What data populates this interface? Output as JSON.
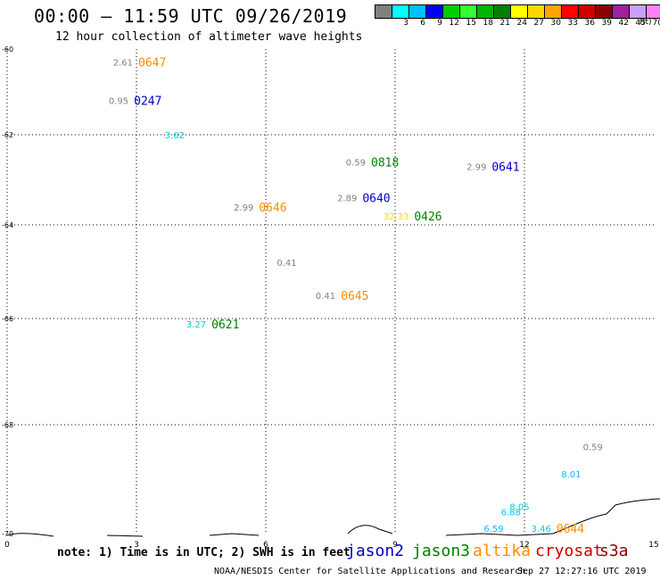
{
  "header": {
    "title": "00:00 – 11:59 UTC 09/26/2019",
    "subtitle": "12 hour collection of altimeter wave heights"
  },
  "legend": {
    "unit": "(ft)",
    "entries": [
      {
        "label": "",
        "color": "#808080"
      },
      {
        "label": "3",
        "color": "#00ffff"
      },
      {
        "label": "6",
        "color": "#00bfff"
      },
      {
        "label": "9",
        "color": "#0000ff"
      },
      {
        "label": "12",
        "color": "#00cd00"
      },
      {
        "label": "15",
        "color": "#32ff32"
      },
      {
        "label": "18",
        "color": "#00b400"
      },
      {
        "label": "21",
        "color": "#008000"
      },
      {
        "label": "24",
        "color": "#ffff00"
      },
      {
        "label": "27",
        "color": "#ffd700"
      },
      {
        "label": "30",
        "color": "#ffa500"
      },
      {
        "label": "33",
        "color": "#ff0000"
      },
      {
        "label": "36",
        "color": "#d00000"
      },
      {
        "label": "39",
        "color": "#8b0000"
      },
      {
        "label": "42",
        "color": "#a020a0"
      },
      {
        "label": "45",
        "color": "#c8a0ff"
      },
      {
        "label": "70",
        "color": "#ff80ff"
      },
      {
        "label": "",
        "color": "#000000"
      }
    ]
  },
  "axes": {
    "x_ticks": [
      {
        "label": "0",
        "lon": 0
      },
      {
        "label": "3",
        "lon": 3
      },
      {
        "label": "6",
        "lon": 6
      },
      {
        "label": "9",
        "lon": 9
      },
      {
        "label": "12",
        "lon": 12
      },
      {
        "label": "15",
        "lon": 15
      }
    ],
    "y_ticks": [
      {
        "label": "-60",
        "lat": -60
      },
      {
        "label": "-62",
        "lat": -62
      },
      {
        "label": "-64",
        "lat": -64
      },
      {
        "label": "-66",
        "lat": -66
      },
      {
        "label": "-68",
        "lat": -68
      },
      {
        "label": "-70",
        "lat": -70
      }
    ]
  },
  "observations": [
    {
      "swh": "2.61",
      "swh_color": "#808080",
      "time": "0647",
      "time_color": "#ff8c00",
      "lon": 3.0,
      "lat": -60.3
    },
    {
      "swh": "0.95",
      "swh_color": "#808080",
      "time": "0247",
      "time_color": "#0000cd",
      "lon": 2.9,
      "lat": -61.2
    },
    {
      "swh": "3.02",
      "swh_color": "#00ced1",
      "time": "",
      "time_color": "#00ced1",
      "lon": 4.2,
      "lat": -62.0
    },
    {
      "swh": "0.59",
      "swh_color": "#808080",
      "time": "0818",
      "time_color": "#008000",
      "lon": 8.4,
      "lat": -62.6
    },
    {
      "swh": "2.99",
      "swh_color": "#808080",
      "time": "0641",
      "time_color": "#0000cd",
      "lon": 11.2,
      "lat": -62.7
    },
    {
      "swh": "2.89",
      "swh_color": "#808080",
      "time": "0640",
      "time_color": "#0000cd",
      "lon": 8.2,
      "lat": -63.4
    },
    {
      "swh": "2.99",
      "swh_color": "#808080",
      "time": "0646",
      "time_color": "#ff8c00",
      "lon": 5.8,
      "lat": -63.6
    },
    {
      "swh": "32.33",
      "swh_color": "#ffd700",
      "time": "0426",
      "time_color": "#008000",
      "lon": 9.4,
      "lat": -63.8
    },
    {
      "swh": "0.41",
      "swh_color": "#808080",
      "time": "",
      "time_color": "#808080",
      "lon": 6.8,
      "lat": -64.8
    },
    {
      "swh": "0.41",
      "swh_color": "#808080",
      "time": "0645",
      "time_color": "#ff8c00",
      "lon": 7.7,
      "lat": -65.5
    },
    {
      "swh": "3.27",
      "swh_color": "#00ced1",
      "time": "0621",
      "time_color": "#008000",
      "lon": 4.7,
      "lat": -66.1
    },
    {
      "swh": "0.59",
      "swh_color": "#808080",
      "time": "",
      "time_color": "#808080",
      "lon": 13.9,
      "lat": -68.4
    },
    {
      "swh": "8.01",
      "swh_color": "#00bfff",
      "time": "",
      "time_color": "#00bfff",
      "lon": 13.4,
      "lat": -68.9
    },
    {
      "swh": "8.05",
      "swh_color": "#00ced1",
      "time": "",
      "time_color": "#00ced1",
      "lon": 12.2,
      "lat": -69.5
    },
    {
      "swh": "6.88",
      "swh_color": "#00bfff",
      "time": "",
      "time_color": "#00bfff",
      "lon": 12.0,
      "lat": -69.6
    },
    {
      "swh": "3.46",
      "swh_color": "#00ced1",
      "time": "0644",
      "time_color": "#ff8c00",
      "lon": 12.7,
      "lat": -69.9
    },
    {
      "swh": "6.59",
      "swh_color": "#00bfff",
      "time": "",
      "time_color": "#00bfff",
      "lon": 11.6,
      "lat": -69.9
    }
  ],
  "footer": {
    "note": "note: 1) Time is in UTC; 2) SWH is in feet",
    "satellites": [
      {
        "name": "jason2",
        "color": "#0000cd"
      },
      {
        "name": "jason3",
        "color": "#008000"
      },
      {
        "name": "altika",
        "color": "#ff8c00"
      },
      {
        "name": "cryosat",
        "color": "#cc0000"
      },
      {
        "name": "s3a",
        "color": "#8b0000"
      }
    ],
    "credit": "NOAA/NESDIS Center for Satellite Applications and Research",
    "timestamp": "Sep 27 12:27:16 UTC 2019"
  }
}
